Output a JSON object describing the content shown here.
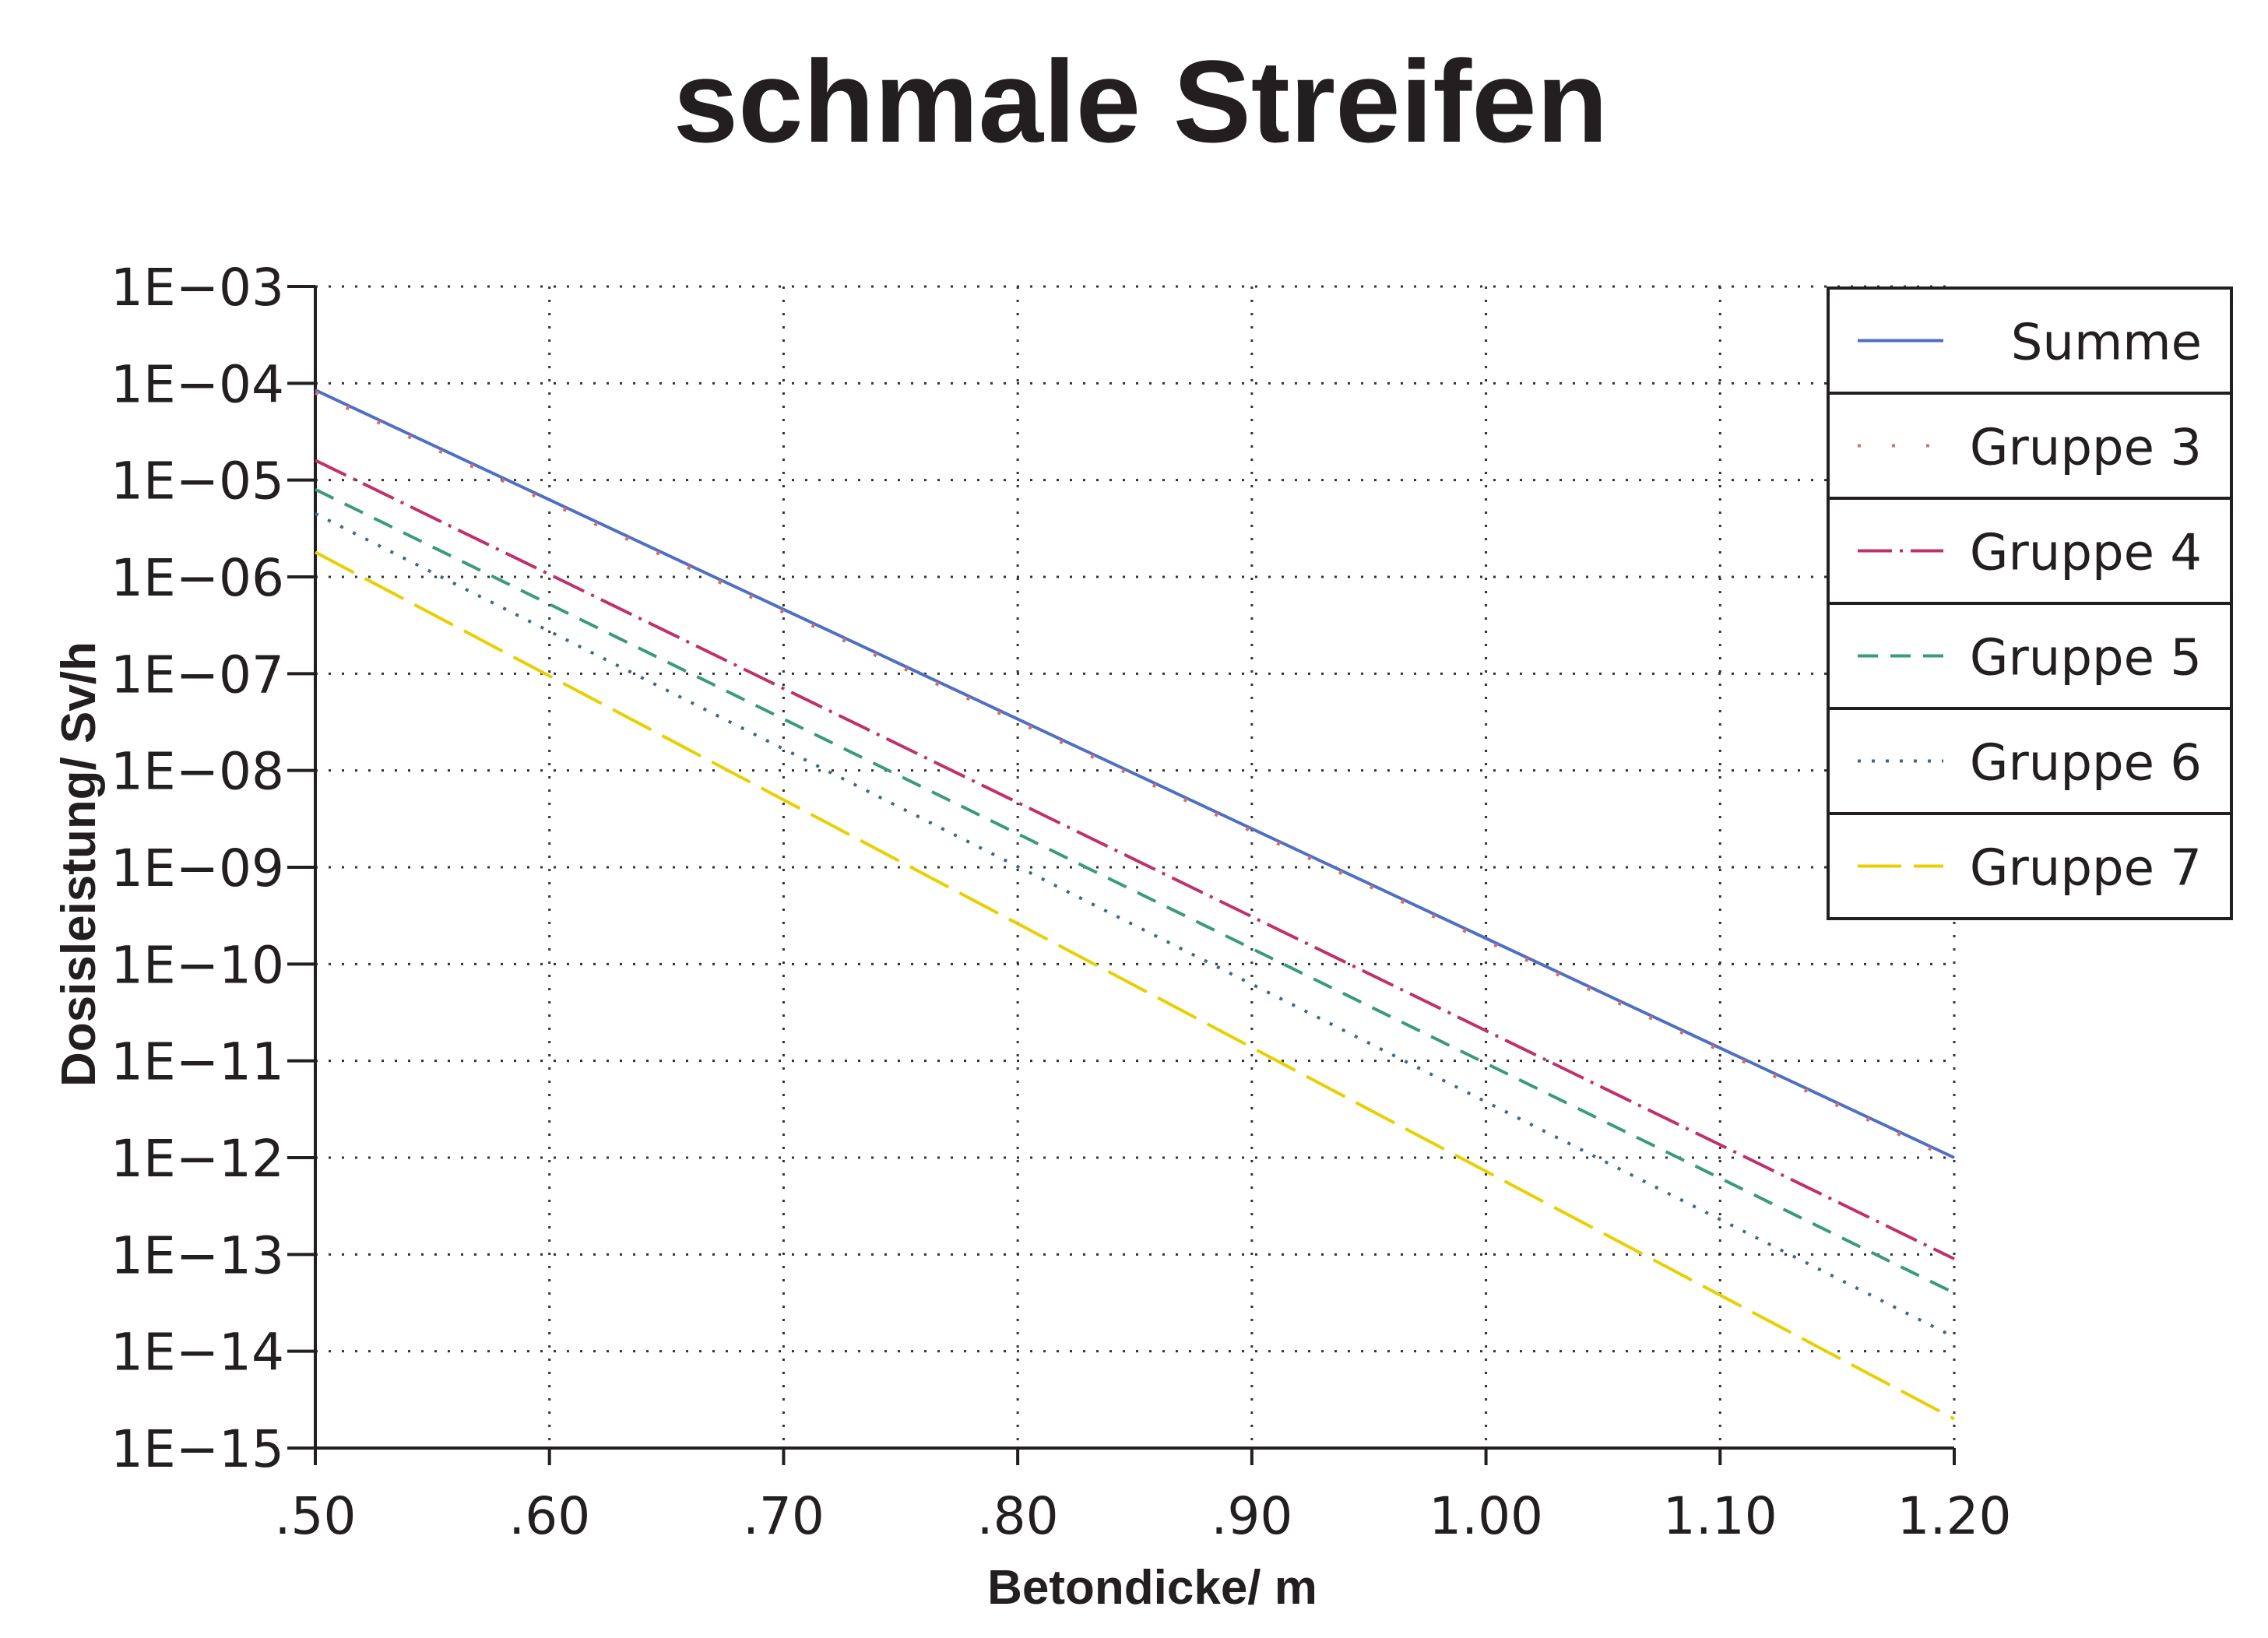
{
  "chart_data": {
    "type": "line",
    "title": "schmale Streifen",
    "xlabel": "Betondicke/ m",
    "ylabel": "Dosisleistung/ Sv/h",
    "x_scale": "linear",
    "y_scale": "log",
    "xlim": [
      0.5,
      1.2
    ],
    "ylim": [
      1e-15,
      0.001
    ],
    "grid": true,
    "legend_position": "top-right",
    "x_tick_values": [
      0.5,
      0.6,
      0.7,
      0.8,
      0.9,
      1.0,
      1.1,
      1.2
    ],
    "x_tick_labels": [
      ".50",
      ".60",
      ".70",
      ".80",
      ".90",
      "1.00",
      "1.10",
      "1.20"
    ],
    "y_tick_values": [
      0.001,
      0.0001,
      1e-05,
      1e-06,
      1e-07,
      1e-08,
      1e-09,
      1e-10,
      1e-11,
      1e-12,
      1e-13,
      1e-14,
      1e-15
    ],
    "y_tick_labels": [
      "1E−03",
      "1E−04",
      "1E−05",
      "1E−06",
      "1E−07",
      "1E−08",
      "1E−09",
      "1E−10",
      "1E−11",
      "1E−12",
      "1E−13",
      "1E−14",
      "1E−15"
    ],
    "series": [
      {
        "name": "Summe",
        "color": "#4f6fc4",
        "dash": "solid",
        "x": [
          0.5,
          1.2
        ],
        "y": [
          8.5e-05,
          1e-12
        ]
      },
      {
        "name": "Gruppe 3",
        "color": "#d0706a",
        "dash": "dotted-sparse",
        "x": [
          0.5,
          1.2
        ],
        "y": [
          8e-05,
          9.5e-13
        ]
      },
      {
        "name": "Gruppe 4",
        "color": "#c0306a",
        "dash": "dashdot",
        "x": [
          0.5,
          1.2
        ],
        "y": [
          1.6e-05,
          9e-14
        ]
      },
      {
        "name": "Gruppe 5",
        "color": "#3a9a7a",
        "dash": "dashed",
        "x": [
          0.5,
          1.2
        ],
        "y": [
          8e-06,
          4e-14
        ]
      },
      {
        "name": "Gruppe 6",
        "color": "#3a6a8a",
        "dash": "dotted",
        "x": [
          0.5,
          1.2
        ],
        "y": [
          4.5e-06,
          1.4e-14
        ]
      },
      {
        "name": "Gruppe 7",
        "color": "#e8d000",
        "dash": "longdash",
        "x": [
          0.5,
          1.2
        ],
        "y": [
          1.8e-06,
          2e-15
        ]
      }
    ]
  }
}
